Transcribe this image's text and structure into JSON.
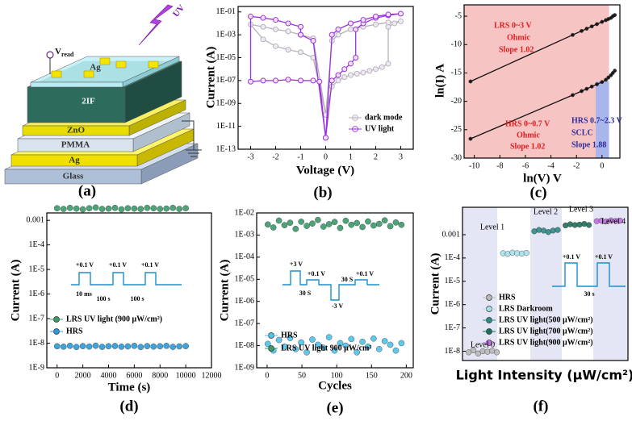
{
  "panel_labels": [
    "(a)",
    "(b)",
    "(c)",
    "(d)",
    "(e)",
    "(f)"
  ],
  "device_diagram": {
    "layers": [
      "Glass",
      "Ag",
      "PMMA",
      "ZnO",
      "2IF",
      "Ag"
    ],
    "light": "UV",
    "read_label": "V",
    "read_subscript": "read"
  },
  "chart_data": [
    {
      "type": "line",
      "y_scale": "log",
      "x_label": "Voltage (V)",
      "y_label": "Current (A)",
      "xlim": [
        -3.5,
        3.5
      ],
      "xticks": [
        -3,
        -2,
        -1,
        0,
        1,
        2,
        3
      ],
      "ylim": [
        1e-13,
        0.3
      ],
      "yticks": [
        {
          "value": 1e-13,
          "label": "1E-13"
        },
        {
          "value": 1e-11,
          "label": "1E-11"
        },
        {
          "value": 1e-09,
          "label": "1E-09"
        },
        {
          "value": 1e-07,
          "label": "1E-07"
        },
        {
          "value": 1e-05,
          "label": "1E-05"
        },
        {
          "value": 0.001,
          "label": "1E-03"
        },
        {
          "value": 0.1,
          "label": "1E-01"
        }
      ],
      "series": [
        {
          "name": "dark mode",
          "color": "#b4b4b4",
          "x": [
            0,
            0.25,
            0.5,
            0.75,
            1,
            1.25,
            1.5,
            1.75,
            2,
            2.25,
            2.5,
            2.5,
            2.75,
            3,
            2.5,
            2,
            1.5,
            1,
            0.5,
            0.25,
            0,
            -0.5,
            -1,
            -1.5,
            -2,
            -2.5,
            -3,
            -2.5,
            -2,
            -1.5,
            -1,
            -0.5,
            0
          ],
          "values": [
            1e-10,
            3e-08,
            1e-07,
            2e-07,
            3e-07,
            4e-07,
            5e-07,
            7e-07,
            1e-06,
            1.5e-06,
            3e-06,
            0.005,
            0.01,
            0.015,
            0.012,
            0.008,
            0.005,
            0.003,
            0.001,
            0.0003,
            1e-10,
            0.0005,
            0.001,
            0.002,
            0.003,
            0.005,
            0.008,
            0.0004,
            0.0001,
            5e-05,
            3e-05,
            1e-05,
            1e-10
          ]
        },
        {
          "name": "UV light",
          "color": "#9b30e0",
          "x": [
            0,
            0.25,
            0.5,
            0.75,
            1,
            1.2,
            1.2,
            1.5,
            2,
            2.5,
            3,
            2.5,
            2,
            1.5,
            1,
            0.5,
            0.25,
            0,
            -0.5,
            -1,
            -1,
            -1.5,
            -2,
            -2.5,
            -3,
            -3,
            -2.5,
            -2,
            -1.5,
            -1,
            -0.5,
            -0.25,
            0
          ],
          "values": [
            1e-12,
            1e-07,
            3e-07,
            1e-06,
            3e-06,
            1e-05,
            0.003,
            0.01,
            0.03,
            0.05,
            0.07,
            0.06,
            0.04,
            0.02,
            0.01,
            0.003,
            0.001,
            1e-12,
            0.0003,
            0.001,
            0.005,
            0.01,
            0.02,
            0.03,
            0.04,
            8e-08,
            1e-07,
            1e-07,
            1.2e-07,
            1e-07,
            1e-07,
            8e-08,
            1e-12
          ]
        }
      ]
    },
    {
      "type": "line",
      "x_label": "ln(V) V",
      "y_label": "ln(I) A",
      "xlim": [
        -10.8,
        1.4
      ],
      "xticks": [
        -10,
        -8,
        -6,
        -4,
        -2,
        0
      ],
      "ylim": [
        -30,
        -3
      ],
      "yticks": [
        -30,
        -25,
        -20,
        -15,
        -10,
        -5
      ],
      "annotations": [
        "LRS 0~3 V",
        "Ohmic",
        "Slope 1.02",
        "HRS 0.7~2.3 V",
        "SCLC",
        "Slope 1.88",
        "HRS 0~0.7 V",
        "Ohmic",
        "Slope 1.02"
      ],
      "series": [
        {
          "color": "#111111",
          "x": [
            -10.3,
            -2.3,
            -1.6,
            -1.2,
            -0.8,
            -0.4,
            0,
            0.3,
            0.5,
            0.7,
            0.85,
            1.0
          ],
          "values": [
            -16.5,
            -8.3,
            -7.6,
            -7.2,
            -6.8,
            -6.4,
            -6.0,
            -5.7,
            -5.5,
            -5.3,
            -5.0,
            -4.8
          ]
        },
        {
          "color": "#111111",
          "x": [
            -10.3,
            -2.3,
            -1.6,
            -1.2,
            -0.8,
            -0.4,
            0,
            0.3,
            0.5,
            0.7,
            0.85,
            1.0
          ],
          "values": [
            -26.6,
            -18.9,
            -18.2,
            -17.8,
            -17.4,
            -17.0,
            -16.6,
            -16.2,
            -15.8,
            -15.4,
            -15.0,
            -14.6
          ]
        }
      ]
    },
    {
      "type": "scatter",
      "y_scale": "log",
      "x_label": "Time (s)",
      "y_label": "Current (A)",
      "xlim": [
        -800,
        12000
      ],
      "xticks": [
        0,
        2000,
        4000,
        6000,
        8000,
        10000,
        12000
      ],
      "ylim": [
        1e-09,
        0.002
      ],
      "yticks": [
        {
          "value": 1e-09,
          "label": "1E-9"
        },
        {
          "value": 1e-08,
          "label": "1E-8"
        },
        {
          "value": 1e-07,
          "label": "1E-7"
        },
        {
          "value": 1e-06,
          "label": "1E-6"
        },
        {
          "value": 1e-05,
          "label": "1E-5"
        },
        {
          "value": 0.0001,
          "label": "1E-4"
        },
        0.001
      ],
      "annotations": [
        "+0.1 V",
        "+0.1 V",
        "+0.1 V",
        "10 ms",
        "100 s",
        "100 s"
      ],
      "x": [
        0,
        500,
        1000,
        1500,
        2000,
        2500,
        3000,
        3500,
        4000,
        4500,
        5000,
        5500,
        6000,
        6500,
        7000,
        7500,
        8000,
        8500,
        9000,
        9500,
        10000
      ],
      "series": [
        {
          "name": "LRS UV light (900 μW/cm²)",
          "color": "#3a9a6a",
          "values": [
            0.0031,
            0.0029,
            0.0032,
            0.003,
            0.0028,
            0.0031,
            0.0033,
            0.0029,
            0.003,
            0.0032,
            0.0028,
            0.0031,
            0.003,
            0.0029,
            0.0032,
            0.0031,
            0.0029,
            0.003,
            0.0032,
            0.0029,
            0.0031
          ]
        },
        {
          "name": "HRS",
          "color": "#2a9ad8",
          "values": [
            7.5e-09,
            7.2e-09,
            7.8e-09,
            7e-09,
            7.6e-09,
            7.3e-09,
            7.9e-09,
            7.1e-09,
            7.5e-09,
            7.7e-09,
            7.2e-09,
            7.4e-09,
            7.8e-09,
            7e-09,
            7.6e-09,
            7.3e-09,
            7.5e-09,
            7.8e-09,
            7.1e-09,
            7.4e-09,
            7.6e-09
          ]
        }
      ]
    },
    {
      "type": "scatter",
      "y_scale": "log",
      "x_label": "Cycles",
      "y_label": "Current (A)",
      "xlim": [
        -15,
        210
      ],
      "xticks": [
        0,
        50,
        100,
        150,
        200
      ],
      "ylim": [
        1e-09,
        0.01
      ],
      "yticks": [
        {
          "value": 1e-09,
          "label": "1E-09"
        },
        {
          "value": 1e-08,
          "label": "1E-08"
        },
        {
          "value": 1e-07,
          "label": "1E-07"
        },
        {
          "value": 1e-06,
          "label": "1E-06"
        },
        {
          "value": 1e-05,
          "label": "1E-05"
        },
        {
          "value": 0.0001,
          "label": "1E-04"
        },
        {
          "value": 0.001,
          "label": "1E-03"
        },
        {
          "value": 0.01,
          "label": "1E-02"
        }
      ],
      "annotations": [
        "+3 V",
        "+0.1 V",
        "30 S",
        "-3 V",
        "30 S",
        "+0.1 V"
      ],
      "x": [
        1,
        9,
        17,
        25,
        33,
        41,
        49,
        57,
        65,
        73,
        81,
        89,
        97,
        105,
        113,
        121,
        129,
        137,
        145,
        153,
        161,
        169,
        177,
        185,
        193
      ],
      "series": [
        {
          "name": "HRS",
          "color": "#4ec3ea",
          "values": [
            1.2e-08,
            6e-09,
            1.8e-08,
            9e-09,
            2.2e-08,
            7e-09,
            1.4e-08,
            5e-09,
            1.9e-08,
            1.1e-08,
            8e-09,
            2.4e-08,
            6e-09,
            1.3e-08,
            1e-08,
            2e-08,
            5e-09,
            1.5e-08,
            9e-09,
            2.1e-08,
            7e-09,
            1.6e-08,
            1.1e-08,
            6e-09,
            1.3e-08
          ]
        },
        {
          "name": "LRS UV light 900 μW/cm²",
          "color": "#3a9a6a",
          "values": [
            0.003,
            0.0022,
            0.0045,
            0.0028,
            0.0036,
            0.0019,
            0.004,
            0.0026,
            0.0033,
            0.0048,
            0.0024,
            0.0031,
            0.0039,
            0.0021,
            0.0044,
            0.0029,
            0.0035,
            0.0023,
            0.0041,
            0.0027,
            0.0032,
            0.0046,
            0.0025,
            0.0037,
            0.0029
          ]
        }
      ]
    },
    {
      "type": "scatter",
      "y_scale": "log",
      "x_label": "Light Intensity (μW/cm²)",
      "y_label": "Current (A)",
      "xlim": [
        -2,
        51
      ],
      "ylim": [
        4e-09,
        0.015
      ],
      "yticks": [
        {
          "value": 1e-08,
          "label": "1E-8"
        },
        {
          "value": 1e-07,
          "label": "1E-7"
        },
        {
          "value": 1e-06,
          "label": "1E-6"
        },
        {
          "value": 1e-05,
          "label": "1E-5"
        },
        {
          "value": 0.0001,
          "label": "1E-4"
        },
        0.001
      ],
      "levels": [
        "Level 0",
        "Level 1",
        "Level 2",
        "Level 3",
        "Level 4"
      ],
      "annotations": [
        "+0.1 V",
        "+0.1 V",
        "30 s"
      ],
      "series": [
        {
          "name": "HRS",
          "color": "#b8b8b8",
          "x": [
            0,
            1.5,
            3,
            4.5,
            6,
            7.5,
            9
          ],
          "values": [
            9e-09,
            1.1e-08,
            8e-09,
            1e-08,
            9.5e-09,
            1.05e-08,
            9e-09
          ]
        },
        {
          "name": "LRS Darkroom",
          "color": "#a8e0ea",
          "x": [
            11,
            12.5,
            14,
            15.5,
            17,
            18.5
          ],
          "values": [
            0.00016,
            0.00015,
            0.00017,
            0.00016,
            0.000155,
            0.000165
          ]
        },
        {
          "name": "LRS UV light(500 μW/cm²)",
          "color": "#2f8a84",
          "x": [
            21,
            22.5,
            24,
            25.5,
            27,
            28.5
          ],
          "values": [
            0.0014,
            0.0016,
            0.0015,
            0.0013,
            0.0015,
            0.0016
          ]
        },
        {
          "name": "LRS UV light(700 μW/cm²)",
          "color": "#1f6f5a",
          "x": [
            31,
            32.5,
            34,
            35.5,
            37,
            38.5
          ],
          "values": [
            0.0025,
            0.0028,
            0.0026,
            0.0027,
            0.0029,
            0.0026
          ]
        },
        {
          "name": "LRS UV light(900 μW/cm²)",
          "color": "#c070e0",
          "x": [
            41,
            42.5,
            44,
            45.5,
            47,
            48.5
          ],
          "values": [
            0.0038,
            0.004,
            0.0037,
            0.0041,
            0.0039,
            0.004
          ]
        }
      ]
    }
  ]
}
